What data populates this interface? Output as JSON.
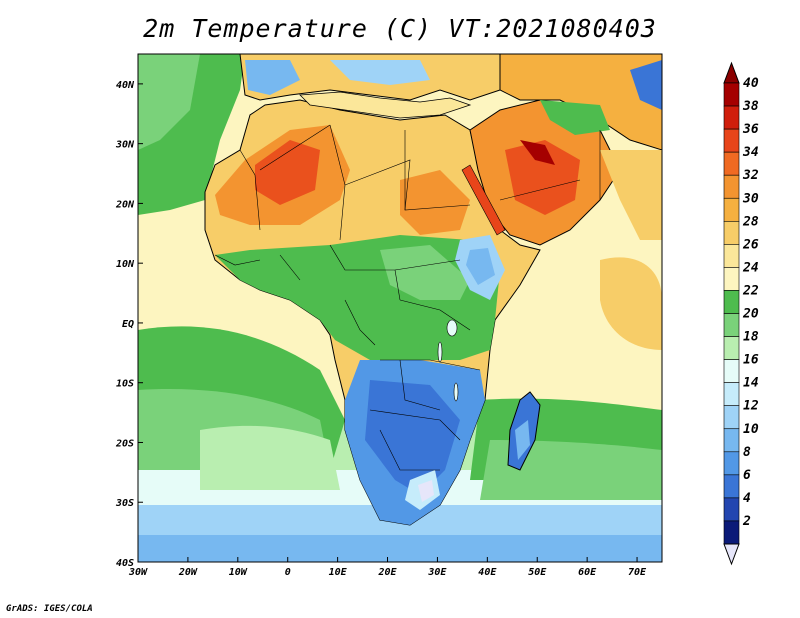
{
  "title": "2m Temperature (C) VT:2021080403",
  "credit": "GrADS: IGES/COLA",
  "map": {
    "region": "Africa",
    "lon_range": [
      -30,
      75
    ],
    "lat_range": [
      -40,
      45
    ],
    "x_ticks": [
      "30W",
      "20W",
      "10W",
      "0",
      "10E",
      "20E",
      "30E",
      "40E",
      "50E",
      "60E",
      "70E"
    ],
    "y_ticks": [
      "40N",
      "30N",
      "20N",
      "10N",
      "EQ",
      "10S",
      "20S",
      "30S",
      "40S"
    ]
  },
  "colorbar": {
    "labels": [
      "40",
      "38",
      "36",
      "34",
      "32",
      "30",
      "28",
      "26",
      "24",
      "22",
      "20",
      "18",
      "16",
      "14",
      "12",
      "10",
      "8",
      "6",
      "4",
      "2"
    ],
    "colors": [
      "#a50000",
      "#d01e0c",
      "#e8451a",
      "#f06a22",
      "#f39430",
      "#f5b040",
      "#f7cd68",
      "#fbe79a",
      "#fdf5c0",
      "#4ebc4e",
      "#7ad27a",
      "#b9eeb0",
      "#e6fcf8",
      "#c6ecfb",
      "#9fd3f7",
      "#77b8f0",
      "#5298e6",
      "#3a75d6",
      "#2346b0",
      "#0b1a78"
    ],
    "top_color": "#8b0000",
    "bottom_color": "#e6e6fa"
  }
}
